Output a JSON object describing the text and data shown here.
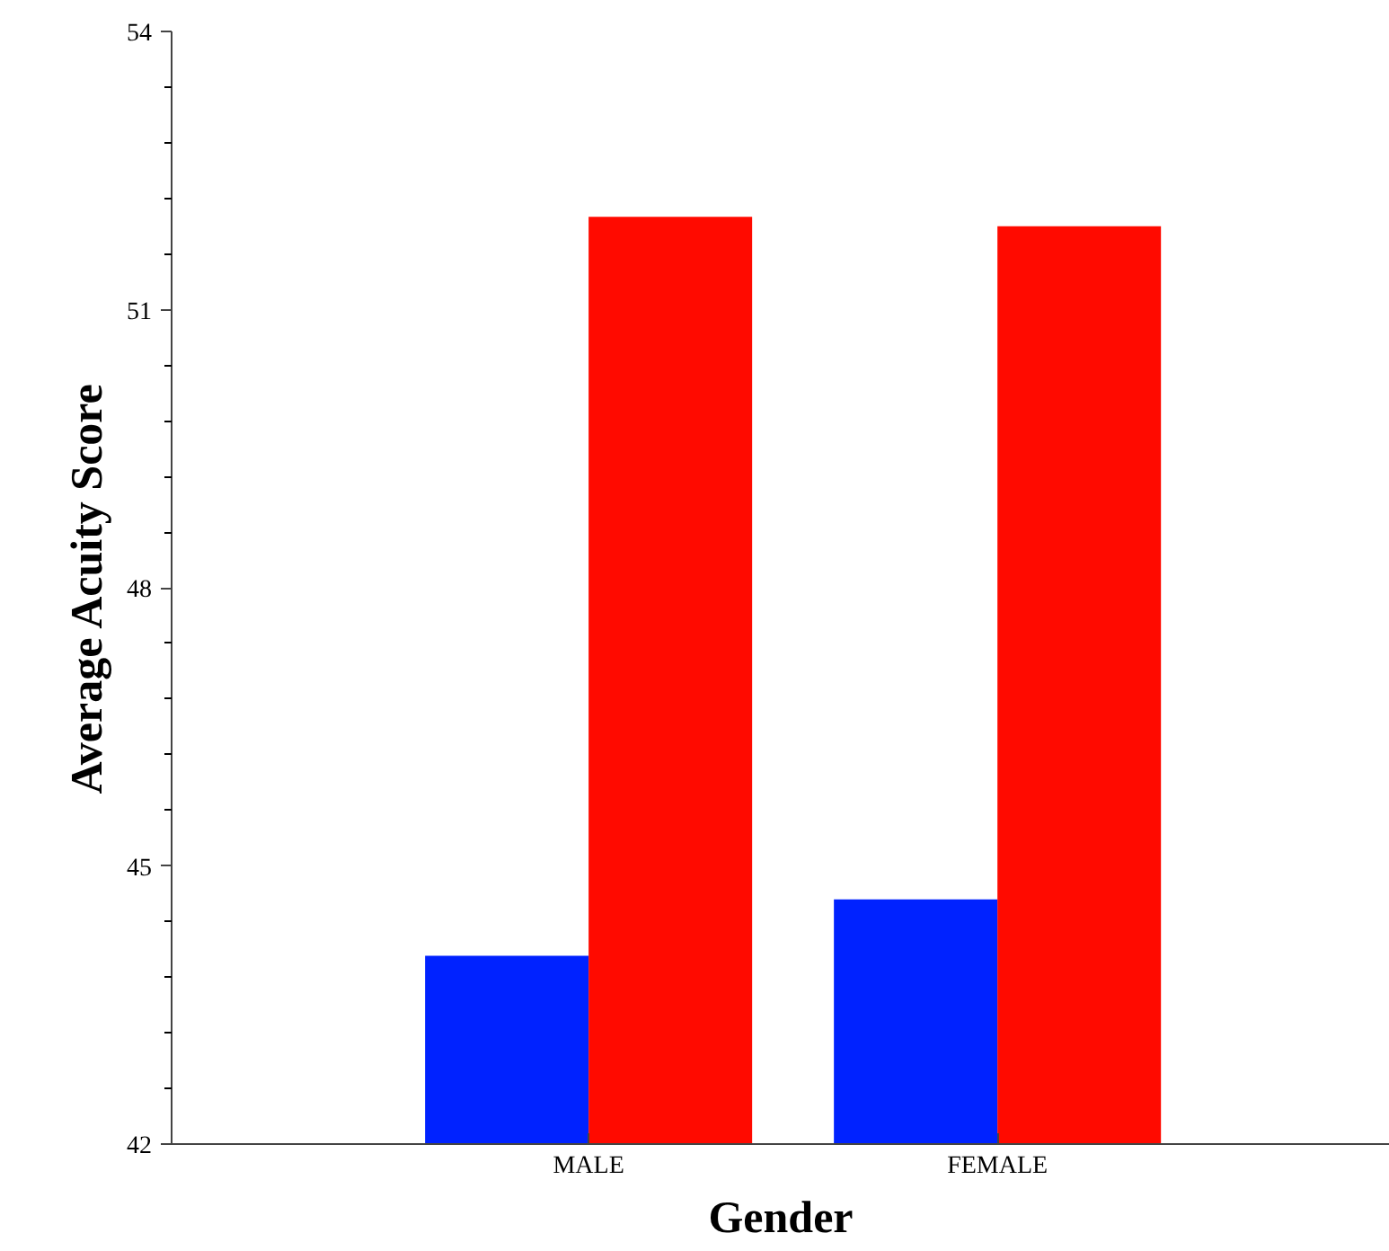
{
  "chart_data": {
    "type": "bar",
    "xlabel": "Gender",
    "ylabel": "Average Acuity Score",
    "categories": [
      "MALE",
      "FEMALE"
    ],
    "series": [
      {
        "color": "#0022ff",
        "values": [
          44.03,
          44.64
        ]
      },
      {
        "color": "#ff0a00",
        "values": [
          52.0,
          51.9
        ]
      }
    ],
    "ylim": [
      42,
      54
    ],
    "yticks": [
      42,
      {
        "value": 42.6,
        "label": null
      },
      {
        "value": 43.2,
        "label": null
      },
      {
        "value": 43.8,
        "label": null
      },
      {
        "value": 44.4,
        "label": null
      },
      45,
      {
        "value": 45.6,
        "label": null
      },
      {
        "value": 46.2,
        "label": null
      },
      {
        "value": 46.8,
        "label": null
      },
      {
        "value": 47.4,
        "label": null
      },
      48,
      {
        "value": 48.6,
        "label": null
      },
      {
        "value": 49.2,
        "label": null
      },
      {
        "value": 49.8,
        "label": null
      },
      {
        "value": 50.4,
        "label": null
      },
      51,
      {
        "value": 51.6,
        "label": null
      },
      {
        "value": 52.2,
        "label": null
      },
      {
        "value": 52.8,
        "label": null
      },
      {
        "value": 53.4,
        "label": null
      },
      54
    ],
    "grid": false
  }
}
